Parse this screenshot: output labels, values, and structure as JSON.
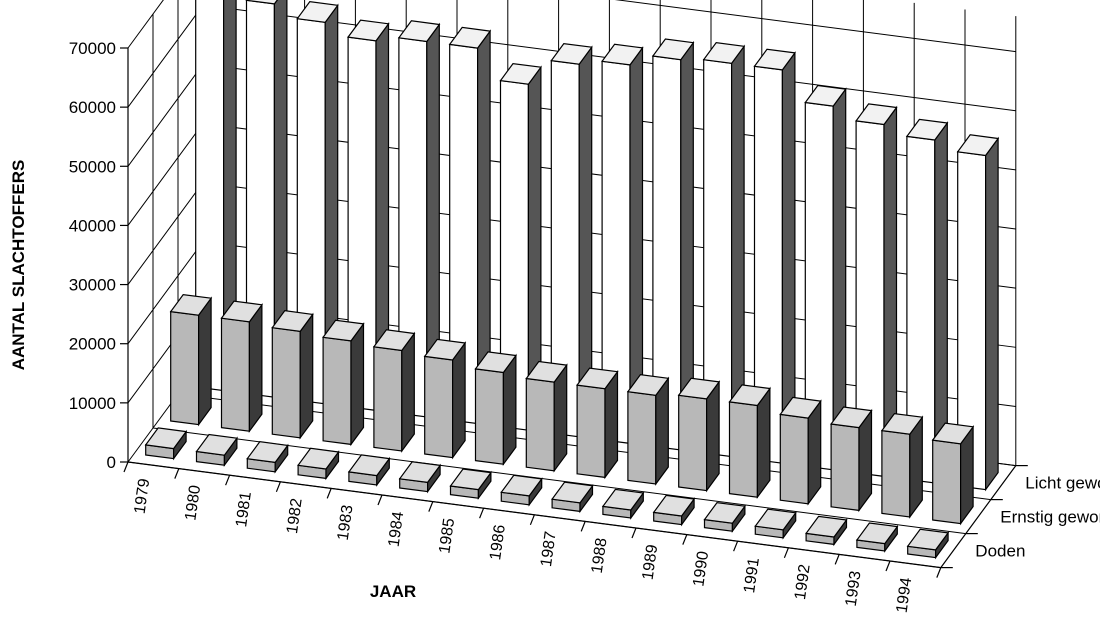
{
  "chart_data": {
    "type": "bar",
    "title": "",
    "ylabel": "AANTAL SLACHTOFFERS",
    "xlabel": "JAAR",
    "ylim": [
      0,
      70000
    ],
    "yticks": [
      "0",
      "10000",
      "20000",
      "30000",
      "40000",
      "50000",
      "60000",
      "70000"
    ],
    "categories": [
      "1979",
      "1980",
      "1981",
      "1982",
      "1983",
      "1984",
      "1985",
      "1986",
      "1987",
      "1988",
      "1989",
      "1990",
      "1991",
      "1992",
      "1993",
      "1994"
    ],
    "series": [
      {
        "name": "Doden",
        "values": [
          1700,
          1700,
          1600,
          1600,
          1600,
          1550,
          1450,
          1500,
          1450,
          1350,
          1450,
          1350,
          1350,
          1250,
          1250,
          1300
        ]
      },
      {
        "name": "Ernstig gewonden",
        "values": [
          18500,
          18500,
          18000,
          17500,
          17000,
          16500,
          15500,
          15000,
          15000,
          15000,
          15500,
          15500,
          14500,
          14000,
          14000,
          13500
        ]
      },
      {
        "name": "Licht gewonden",
        "values": [
          67000,
          66500,
          64500,
          62500,
          63500,
          63500,
          58500,
          63000,
          64000,
          66000,
          66500,
          66500,
          61500,
          59500,
          58000,
          56500
        ]
      }
    ],
    "colors": {
      "front": "#b8b8b8",
      "side": "#3a3a3a",
      "top": "#e0e0e0",
      "light_front": "#ffffff",
      "light_side": "#555555",
      "light_top": "#f2f2f2",
      "line": "#000000"
    },
    "grid": true
  }
}
